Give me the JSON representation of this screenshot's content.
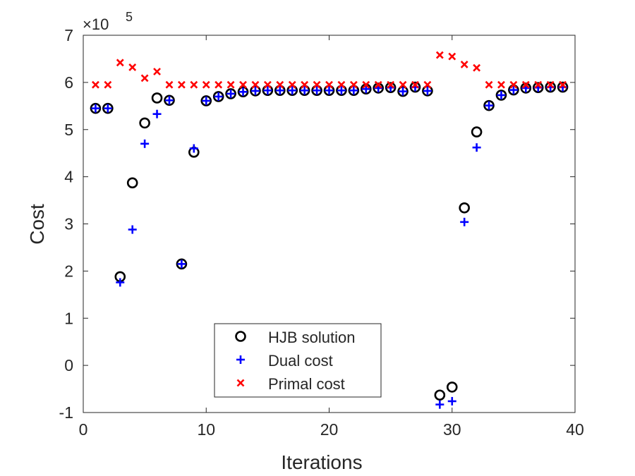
{
  "chart_data": {
    "type": "scatter",
    "xlabel": "Iterations",
    "ylabel": "Cost",
    "xlim": [
      0,
      40
    ],
    "ylim": [
      -1,
      7
    ],
    "xticks": [
      0,
      10,
      20,
      30,
      40
    ],
    "yticks": [
      -1,
      0,
      1,
      2,
      3,
      4,
      5,
      6,
      7
    ],
    "y_exponent_label": "×10",
    "y_exponent_power": "5",
    "y_scale": 100000,
    "legend_position": "lower-center",
    "x": [
      1,
      2,
      3,
      4,
      5,
      6,
      7,
      8,
      9,
      10,
      11,
      12,
      13,
      14,
      15,
      16,
      17,
      18,
      19,
      20,
      21,
      22,
      23,
      24,
      25,
      26,
      27,
      28,
      29,
      30,
      31,
      32,
      33,
      34,
      35,
      36,
      37,
      38,
      39
    ],
    "series": [
      {
        "name": "HJB solution",
        "marker": "circle",
        "color": "#000000",
        "values": [
          5.45,
          5.45,
          1.88,
          3.87,
          5.14,
          5.67,
          5.62,
          2.15,
          4.52,
          5.61,
          5.7,
          5.76,
          5.8,
          5.82,
          5.83,
          5.83,
          5.83,
          5.83,
          5.83,
          5.83,
          5.83,
          5.83,
          5.86,
          5.88,
          5.89,
          5.81,
          5.9,
          5.82,
          -0.63,
          -0.46,
          3.34,
          4.95,
          5.51,
          5.73,
          5.84,
          5.88,
          5.89,
          5.9,
          5.9
        ]
      },
      {
        "name": "Dual cost",
        "marker": "plus",
        "color": "#0000ff",
        "values": [
          5.45,
          5.45,
          1.76,
          2.88,
          4.7,
          5.33,
          5.62,
          2.15,
          4.6,
          5.61,
          5.7,
          5.76,
          5.8,
          5.82,
          5.83,
          5.83,
          5.83,
          5.83,
          5.83,
          5.83,
          5.83,
          5.83,
          5.86,
          5.88,
          5.89,
          5.81,
          5.9,
          5.82,
          -0.83,
          -0.76,
          3.04,
          4.62,
          5.51,
          5.73,
          5.84,
          5.88,
          5.89,
          5.9,
          5.9
        ]
      },
      {
        "name": "Primal cost",
        "marker": "x",
        "color": "#ff0000",
        "values": [
          5.95,
          5.95,
          6.42,
          6.32,
          6.09,
          6.23,
          5.95,
          5.95,
          5.95,
          5.95,
          5.95,
          5.95,
          5.95,
          5.95,
          5.95,
          5.95,
          5.95,
          5.95,
          5.95,
          5.95,
          5.95,
          5.95,
          5.95,
          5.95,
          5.95,
          5.95,
          5.95,
          5.95,
          6.58,
          6.55,
          6.38,
          6.31,
          5.95,
          5.95,
          5.95,
          5.95,
          5.95,
          5.95,
          5.95
        ]
      }
    ]
  }
}
